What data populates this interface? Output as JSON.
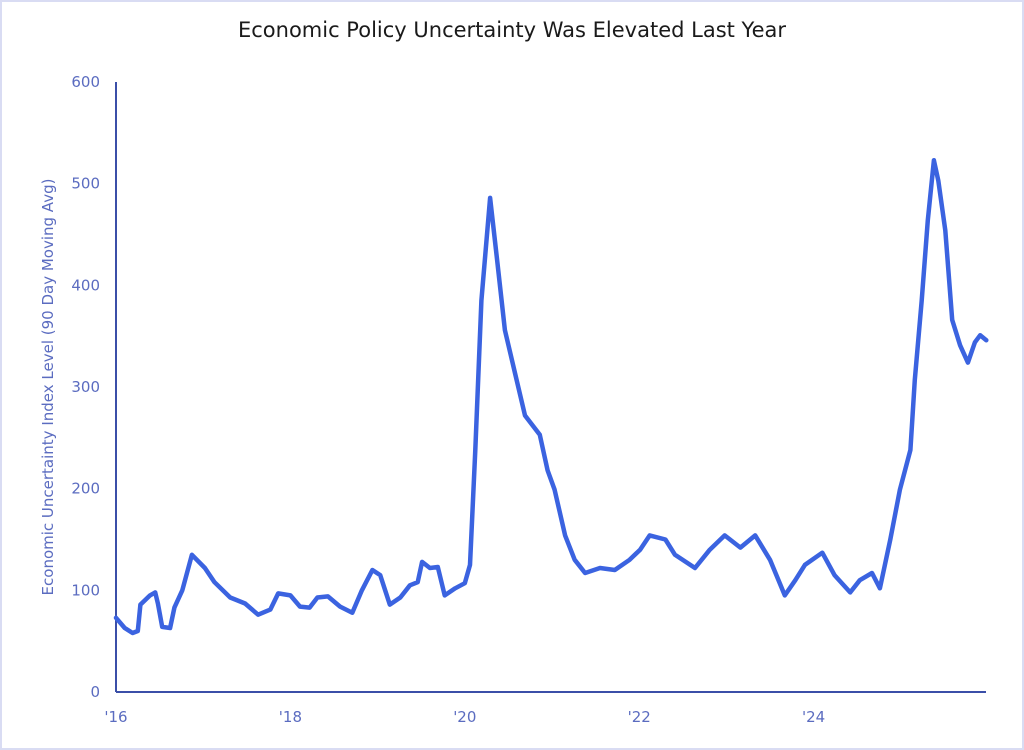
{
  "chart_data": {
    "type": "line",
    "title": "Economic Policy Uncertainty Was Elevated Last Year",
    "xlabel": "",
    "ylabel": "Economic Uncertainty Index Level (90 Day Moving Avg)",
    "xlim": [
      2016,
      2026
    ],
    "ylim": [
      0,
      600
    ],
    "grid": false,
    "legend": "none",
    "line_color": "#3b63e0",
    "axis_color": "#3b4fa8",
    "x_ticks": [
      {
        "value": 2016,
        "label": "'16"
      },
      {
        "value": 2018,
        "label": "'18"
      },
      {
        "value": 2020,
        "label": "'20"
      },
      {
        "value": 2022,
        "label": "'22"
      },
      {
        "value": 2024,
        "label": "'24"
      }
    ],
    "y_ticks": [
      0,
      100,
      200,
      300,
      400,
      500,
      600
    ],
    "series": [
      {
        "x": [
          2016.0,
          2016.1,
          2016.19,
          2016.25,
          2016.28,
          2016.39,
          2016.45,
          2016.48,
          2016.53,
          2016.62,
          2016.67,
          2016.76,
          2016.87,
          2017.02,
          2017.13,
          2017.31,
          2017.48,
          2017.63,
          2017.77,
          2017.86,
          2018.0,
          2018.11,
          2018.22,
          2018.31,
          2018.43,
          2018.57,
          2018.71,
          2018.82,
          2018.94,
          2019.03,
          2019.14,
          2019.26,
          2019.37,
          2019.46,
          2019.51,
          2019.6,
          2019.69,
          2019.77,
          2019.89,
          2020.0,
          2020.06,
          2020.12,
          2020.19,
          2020.29,
          2020.37,
          2020.46,
          2020.58,
          2020.69,
          2020.86,
          2020.95,
          2021.03,
          2021.15,
          2021.26,
          2021.38,
          2021.55,
          2021.72,
          2021.89,
          2022.01,
          2022.12,
          2022.3,
          2022.41,
          2022.64,
          2022.81,
          2022.98,
          2023.16,
          2023.33,
          2023.5,
          2023.67,
          2023.79,
          2023.9,
          2024.1,
          2024.24,
          2024.42,
          2024.53,
          2024.67,
          2024.76,
          2024.88,
          2024.99,
          2025.11,
          2025.16,
          2025.24,
          2025.31,
          2025.38,
          2025.43,
          2025.51,
          2025.59,
          2025.68,
          2025.77,
          2025.85,
          2025.91,
          2025.98
        ],
        "y": [
          73,
          63,
          58,
          60,
          86,
          95,
          98,
          87,
          64,
          63,
          83,
          100,
          135,
          122,
          108,
          93,
          87,
          76,
          81,
          97,
          95,
          84,
          83,
          93,
          94,
          84,
          78,
          100,
          120,
          115,
          86,
          93,
          105,
          108,
          128,
          122,
          123,
          95,
          102,
          107,
          125,
          238,
          385,
          486,
          425,
          356,
          312,
          272,
          253,
          218,
          199,
          154,
          130,
          117,
          122,
          120,
          130,
          140,
          154,
          150,
          135,
          122,
          140,
          154,
          142,
          154,
          130,
          95,
          110,
          125,
          137,
          115,
          98,
          110,
          117,
          102,
          150,
          199,
          238,
          307,
          385,
          464,
          523,
          503,
          454,
          366,
          341,
          324,
          344,
          351,
          346
        ]
      }
    ]
  }
}
